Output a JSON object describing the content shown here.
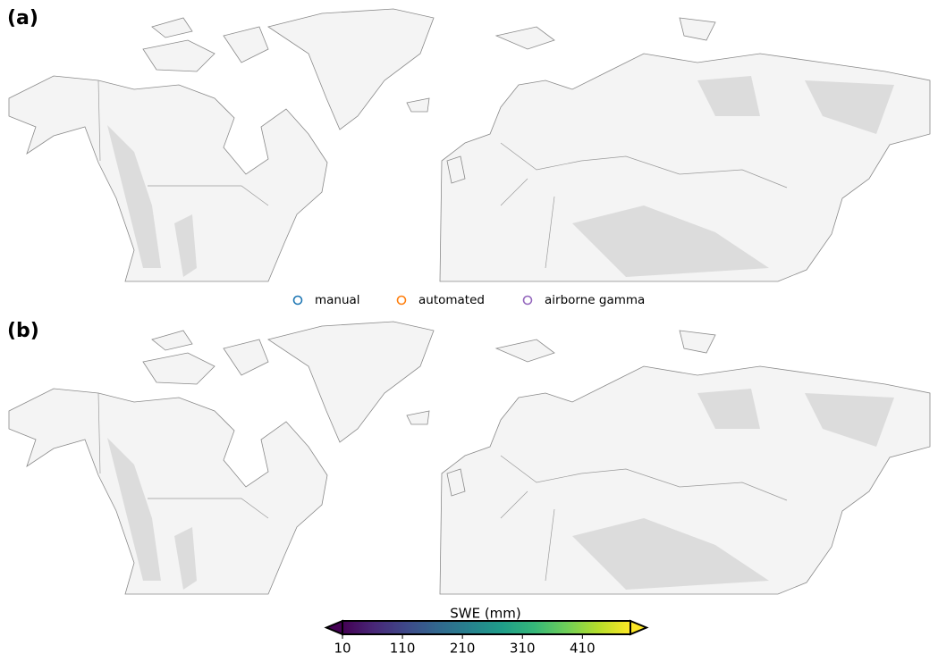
{
  "panels": [
    {
      "label": "(a)"
    },
    {
      "label": "(b)"
    }
  ],
  "legend": [
    {
      "name": "manual",
      "color": "#1f77b4"
    },
    {
      "name": "automated",
      "color": "#ff7f0e"
    },
    {
      "name": "airborne gamma",
      "color": "#9467bd"
    }
  ],
  "colorbar": {
    "label": "SWE (mm)",
    "lim": [
      10,
      490
    ],
    "ticks": [
      10,
      110,
      210,
      310,
      410
    ],
    "colormap": "viridis",
    "extend": "both"
  }
}
